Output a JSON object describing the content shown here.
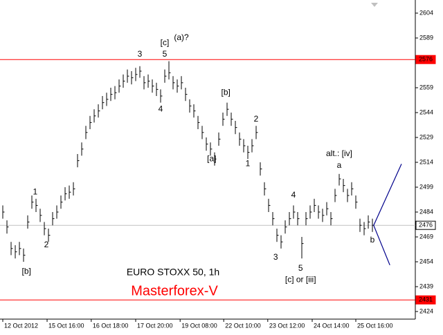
{
  "chart_data": {
    "type": "ohlc",
    "title": "EURO STOXX 50, 1h",
    "subtitle": "Masterforex-V",
    "color": "#000000",
    "high": [
      2488,
      2479,
      2466,
      2464,
      2466,
      2462,
      2482,
      2494,
      2492,
      2486,
      2478,
      2474,
      2484,
      2488,
      2494,
      2499,
      2500,
      2502,
      2519,
      2526,
      2536,
      2542,
      2546,
      2549,
      2554,
      2556,
      2559,
      2560,
      2564,
      2567,
      2570,
      2569,
      2571,
      2572,
      2566,
      2567,
      2564,
      2562,
      2558,
      2570,
      2575,
      2566,
      2564,
      2566,
      2559,
      2552,
      2549,
      2542,
      2536,
      2529,
      2526,
      2520,
      2532,
      2544,
      2550,
      2544,
      2539,
      2532,
      2528,
      2524,
      2528,
      2536,
      2514,
      2502,
      2492,
      2484,
      2474,
      2470,
      2479,
      2484,
      2488,
      2484,
      2469,
      2484,
      2488,
      2492,
      2488,
      2486,
      2490,
      2484,
      2498,
      2507,
      2504,
      2498,
      2502,
      2494,
      2480,
      2478,
      2482,
      2480
    ],
    "low": [
      2480,
      2471,
      2458,
      2456,
      2458,
      2454,
      2474,
      2486,
      2484,
      2478,
      2470,
      2466,
      2476,
      2480,
      2486,
      2491,
      2492,
      2494,
      2511,
      2518,
      2528,
      2534,
      2538,
      2541,
      2546,
      2548,
      2551,
      2552,
      2556,
      2559,
      2562,
      2561,
      2563,
      2565,
      2558,
      2559,
      2556,
      2554,
      2550,
      2562,
      2564,
      2558,
      2556,
      2558,
      2551,
      2544,
      2541,
      2534,
      2528,
      2521,
      2518,
      2512,
      2524,
      2536,
      2542,
      2536,
      2531,
      2524,
      2520,
      2516,
      2520,
      2528,
      2506,
      2494,
      2484,
      2476,
      2466,
      2462,
      2471,
      2476,
      2480,
      2476,
      2456,
      2476,
      2480,
      2484,
      2480,
      2478,
      2482,
      2476,
      2490,
      2500,
      2496,
      2490,
      2494,
      2486,
      2472,
      2470,
      2474,
      2472
    ],
    "close": [
      2484,
      2475,
      2462,
      2460,
      2462,
      2458,
      2478,
      2490,
      2488,
      2482,
      2474,
      2470,
      2480,
      2484,
      2490,
      2495,
      2496,
      2498,
      2515,
      2522,
      2532,
      2538,
      2542,
      2545,
      2550,
      2552,
      2555,
      2556,
      2560,
      2563,
      2566,
      2565,
      2567,
      2569,
      2562,
      2563,
      2560,
      2558,
      2554,
      2566,
      2568,
      2562,
      2560,
      2562,
      2555,
      2548,
      2545,
      2538,
      2532,
      2525,
      2522,
      2516,
      2528,
      2540,
      2546,
      2540,
      2535,
      2528,
      2524,
      2520,
      2524,
      2532,
      2510,
      2498,
      2488,
      2480,
      2470,
      2466,
      2475,
      2480,
      2484,
      2480,
      2465,
      2480,
      2484,
      2488,
      2484,
      2482,
      2486,
      2480,
      2494,
      2504,
      2500,
      2494,
      2498,
      2490,
      2476,
      2474,
      2478,
      2476
    ],
    "ylim": [
      2424,
      2604
    ],
    "yticks": [
      2424,
      2439,
      2454,
      2469,
      2484,
      2499,
      2514,
      2529,
      2544,
      2559,
      2589,
      2604
    ],
    "xlim": [
      -0.67,
      99.33
    ],
    "xticks": [
      {
        "value": 0,
        "label": "12 Oct 2012"
      },
      {
        "value": 10.67,
        "label": "15 Oct 16:00"
      },
      {
        "value": 21.3,
        "label": "16 Oct 18:00"
      },
      {
        "value": 32,
        "label": "17 Oct 20:00"
      },
      {
        "value": 42.7,
        "label": "19 Oct 08:00"
      },
      {
        "value": 53.2,
        "label": "22 Oct 10:00"
      },
      {
        "value": 63.8,
        "label": "23 Oct 12:00"
      },
      {
        "value": 74.5,
        "label": "24 Oct 14:00"
      },
      {
        "value": 85,
        "label": "25 Oct 16:00"
      }
    ],
    "price_lines": [
      {
        "value": 2576,
        "color": "#ff0000"
      },
      {
        "value": 2476,
        "color": "#c0c0c0"
      },
      {
        "value": 2431,
        "color": "#ff0000"
      }
    ],
    "projection": {
      "color": "#00008b",
      "x": [
        89.3,
        96,
        89.3,
        93.2
      ],
      "y": [
        2476,
        2513,
        2476,
        2452
      ]
    },
    "annotations": [
      {
        "text": "1",
        "x": 7.8,
        "y": 2496
      },
      {
        "text": "[b]",
        "x": 5.7,
        "y": 2448
      },
      {
        "text": "2",
        "x": 10.5,
        "y": 2464
      },
      {
        "text": "3",
        "x": 33,
        "y": 2579
      },
      {
        "text": "[c]",
        "x": 39,
        "y": 2586
      },
      {
        "text": "5",
        "x": 39,
        "y": 2579
      },
      {
        "text": "(a)?",
        "x": 43,
        "y": 2589
      },
      {
        "text": "4",
        "x": 38,
        "y": 2546
      },
      {
        "text": "[b]",
        "x": 53.7,
        "y": 2556
      },
      {
        "text": "[a]",
        "x": 50.3,
        "y": 2516
      },
      {
        "text": "2",
        "x": 61,
        "y": 2540
      },
      {
        "text": "1",
        "x": 59,
        "y": 2513
      },
      {
        "text": "4",
        "x": 70,
        "y": 2494
      },
      {
        "text": "3",
        "x": 65.7,
        "y": 2456.5
      },
      {
        "text": "5",
        "x": 71.7,
        "y": 2450
      },
      {
        "text": "[c] or [iii]",
        "x": 71.7,
        "y": 2443
      },
      {
        "text": "alt.: [iv]",
        "x": 81,
        "y": 2519
      },
      {
        "text": "a",
        "x": 81,
        "y": 2512
      },
      {
        "text": "b",
        "x": 89,
        "y": 2467
      }
    ]
  }
}
